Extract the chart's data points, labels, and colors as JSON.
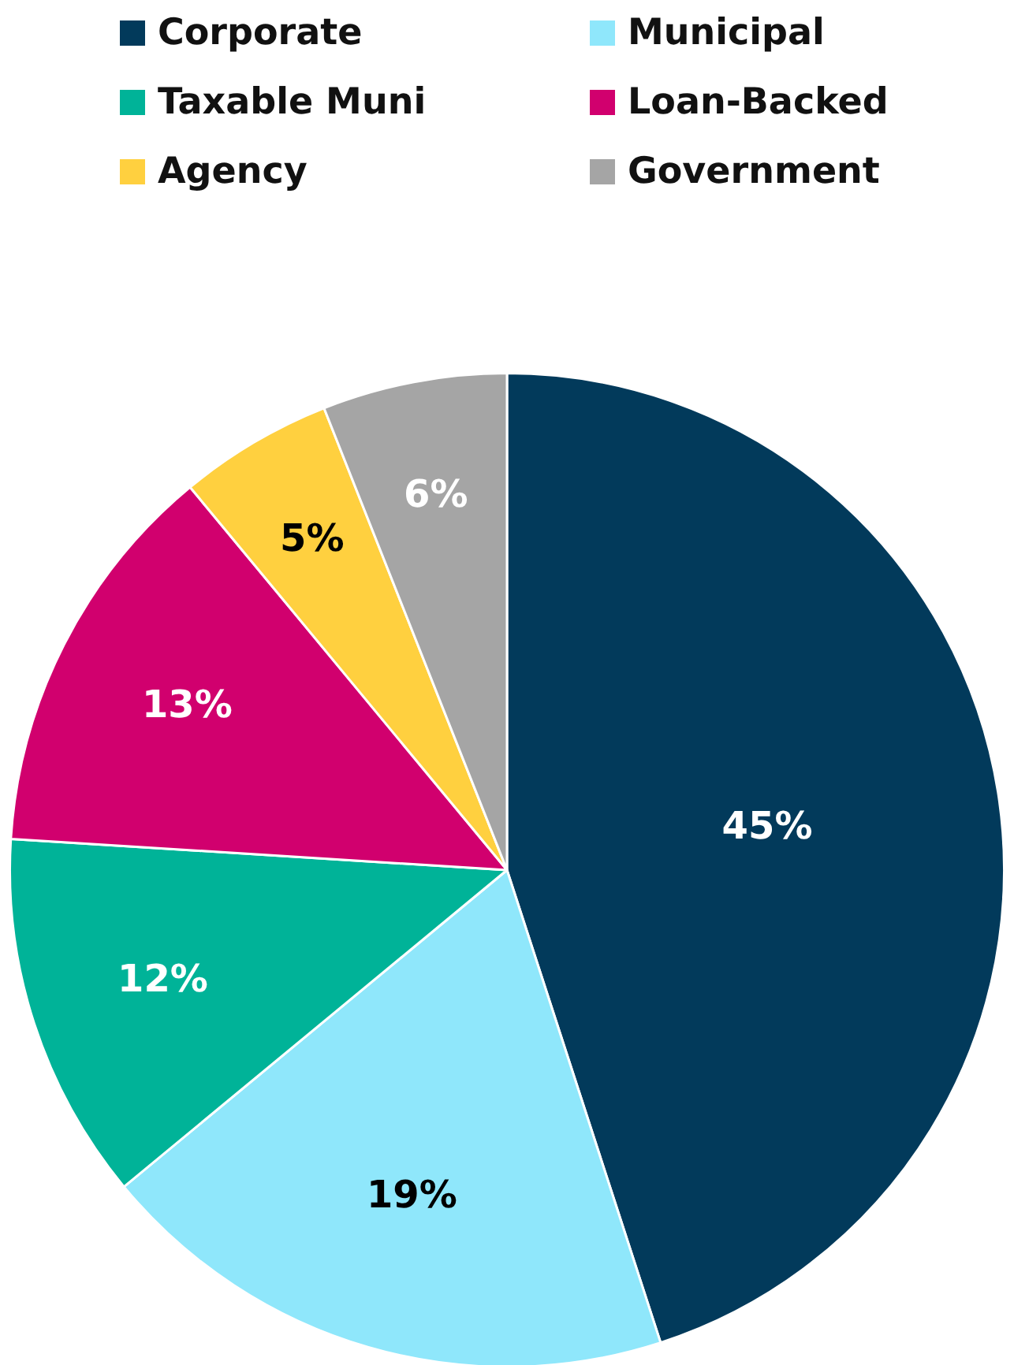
{
  "chart_data": {
    "type": "pie",
    "categories": [
      "Corporate",
      "Municipal",
      "Taxable Muni",
      "Loan-Backed",
      "Agency",
      "Government"
    ],
    "values": [
      45,
      19,
      12,
      13,
      5,
      6
    ],
    "colors": [
      "#023a5b",
      "#8fe7fb",
      "#00b398",
      "#d1006e",
      "#ffd03f",
      "#a5a5a5"
    ],
    "value_labels": [
      "45%",
      "19%",
      "12%",
      "13%",
      "5%",
      "6%"
    ],
    "legend": "top"
  }
}
